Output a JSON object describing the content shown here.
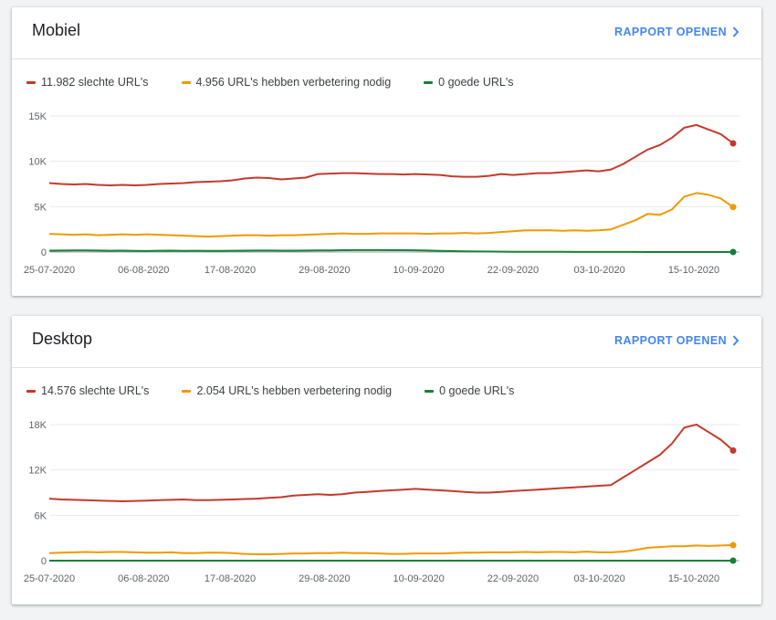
{
  "cards": [
    {
      "title": "Mobiel",
      "link_label": "RAPPORT OPENEN",
      "link_icon": "chevron-right-icon",
      "legend": [
        {
          "label": "11.982 slechte URL's",
          "color": "#c5392b"
        },
        {
          "label": "4.956 URL's hebben verbetering nodig",
          "color": "#f29900"
        },
        {
          "label": "0 goede URL's",
          "color": "#188038"
        }
      ]
    },
    {
      "title": "Desktop",
      "link_label": "RAPPORT OPENEN",
      "link_icon": "chevron-right-icon",
      "legend": [
        {
          "label": "14.576 slechte URL's",
          "color": "#c5392b"
        },
        {
          "label": "2.054 URL's hebben verbetering nodig",
          "color": "#f29900"
        },
        {
          "label": "0 goede URL's",
          "color": "#188038"
        }
      ]
    }
  ],
  "chart_data": [
    {
      "type": "line",
      "x_start": "2020-07-25",
      "x_end": "2020-10-20",
      "x_ticks": [
        "25-07-2020",
        "06-08-2020",
        "17-08-2020",
        "29-08-2020",
        "10-09-2020",
        "22-09-2020",
        "03-10-2020",
        "15-10-2020"
      ],
      "y_ticks": [
        "0",
        "5K",
        "10K",
        "15K"
      ],
      "ylim": [
        0,
        15000
      ],
      "grid": true,
      "legend_position": "top-left",
      "series": [
        {
          "name": "11.982 slechte URL's",
          "color": "#c5392b",
          "values": [
            7600,
            7500,
            7450,
            7500,
            7400,
            7350,
            7400,
            7350,
            7400,
            7500,
            7550,
            7600,
            7700,
            7750,
            7800,
            7900,
            8100,
            8200,
            8150,
            8000,
            8100,
            8200,
            8600,
            8650,
            8700,
            8700,
            8650,
            8600,
            8600,
            8550,
            8600,
            8550,
            8500,
            8350,
            8300,
            8300,
            8400,
            8600,
            8500,
            8600,
            8700,
            8700,
            8800,
            8900,
            9000,
            8900,
            9100,
            9700,
            10500,
            11300,
            11800,
            12600,
            13700,
            14000,
            13500,
            13000,
            11982
          ]
        },
        {
          "name": "4.956 URL's hebben verbetering nodig",
          "color": "#f29900",
          "values": [
            2000,
            1950,
            1900,
            1950,
            1850,
            1900,
            1950,
            1900,
            1950,
            1900,
            1850,
            1800,
            1750,
            1700,
            1750,
            1800,
            1850,
            1850,
            1800,
            1850,
            1850,
            1900,
            1950,
            2000,
            2050,
            2000,
            2000,
            2050,
            2050,
            2050,
            2050,
            2000,
            2050,
            2050,
            2100,
            2050,
            2100,
            2200,
            2300,
            2400,
            2400,
            2400,
            2350,
            2400,
            2350,
            2400,
            2500,
            3000,
            3500,
            4200,
            4100,
            4700,
            6100,
            6500,
            6300,
            5900,
            4956
          ]
        },
        {
          "name": "0 goede URL's",
          "color": "#188038",
          "values": [
            150,
            160,
            180,
            170,
            160,
            140,
            150,
            120,
            110,
            140,
            150,
            130,
            140,
            130,
            120,
            140,
            150,
            160,
            160,
            150,
            150,
            160,
            170,
            180,
            200,
            210,
            210,
            210,
            200,
            200,
            190,
            160,
            120,
            100,
            80,
            60,
            50,
            40,
            30,
            30,
            20,
            20,
            20,
            10,
            10,
            10,
            10,
            10,
            10,
            5,
            5,
            5,
            0,
            0,
            0,
            0,
            0
          ]
        }
      ]
    },
    {
      "type": "line",
      "x_start": "2020-07-25",
      "x_end": "2020-10-20",
      "x_ticks": [
        "25-07-2020",
        "06-08-2020",
        "17-08-2020",
        "29-08-2020",
        "10-09-2020",
        "22-09-2020",
        "03-10-2020",
        "15-10-2020"
      ],
      "y_ticks": [
        "0",
        "6K",
        "12K",
        "18K"
      ],
      "ylim": [
        0,
        18000
      ],
      "grid": true,
      "legend_position": "top-left",
      "series": [
        {
          "name": "14.576 slechte URL's",
          "color": "#c5392b",
          "values": [
            8200,
            8100,
            8050,
            8000,
            7950,
            7900,
            7850,
            7900,
            7950,
            8000,
            8050,
            8100,
            8000,
            8000,
            8050,
            8100,
            8150,
            8200,
            8300,
            8400,
            8600,
            8700,
            8800,
            8700,
            8800,
            9000,
            9100,
            9200,
            9300,
            9400,
            9500,
            9400,
            9300,
            9200,
            9100,
            9000,
            9000,
            9100,
            9200,
            9300,
            9400,
            9500,
            9600,
            9700,
            9800,
            9900,
            10000,
            11000,
            12000,
            13000,
            14000,
            15500,
            17600,
            18000,
            17000,
            16000,
            14576
          ]
        },
        {
          "name": "2.054 URL's hebben verbetering nodig",
          "color": "#f29900",
          "values": [
            1000,
            1050,
            1100,
            1150,
            1100,
            1150,
            1150,
            1100,
            1050,
            1050,
            1100,
            1000,
            1000,
            1050,
            1050,
            1000,
            900,
            850,
            850,
            900,
            950,
            950,
            1000,
            1000,
            1050,
            1000,
            1000,
            950,
            900,
            900,
            950,
            950,
            950,
            1000,
            1050,
            1050,
            1100,
            1100,
            1100,
            1150,
            1100,
            1150,
            1150,
            1100,
            1200,
            1100,
            1100,
            1200,
            1400,
            1700,
            1800,
            1900,
            1900,
            2000,
            1950,
            2000,
            2054
          ]
        },
        {
          "name": "0 goede URL's",
          "color": "#188038",
          "values": [
            0,
            0,
            0,
            0,
            0,
            0,
            0,
            0,
            0,
            0,
            0,
            0,
            0,
            0,
            0,
            0,
            0,
            0,
            0,
            0,
            0,
            0,
            0,
            0,
            0,
            0,
            0,
            0,
            0,
            0,
            0,
            0,
            0,
            0,
            0,
            0,
            0,
            0,
            0,
            0,
            0,
            0,
            0,
            0,
            0,
            0,
            0,
            0,
            0,
            0,
            0,
            0,
            0,
            0,
            0,
            0,
            0
          ]
        }
      ]
    }
  ]
}
